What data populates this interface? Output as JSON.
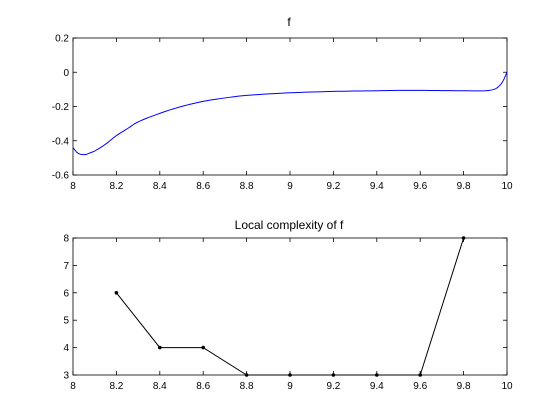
{
  "chart_data": [
    {
      "type": "line",
      "title": "f",
      "xlabel": "",
      "ylabel": "",
      "xlim": [
        8,
        10
      ],
      "ylim": [
        -0.6,
        0.2
      ],
      "xticks": [
        "8",
        "8.2",
        "8.4",
        "8.6",
        "8.8",
        "9",
        "9.2",
        "9.4",
        "9.6",
        "9.8",
        "10"
      ],
      "yticks": [
        "-0.6",
        "-0.4",
        "-0.2",
        "0",
        "0.2"
      ],
      "grid": false,
      "line_color": "#0000ff",
      "series": [
        {
          "x": [
            8.0,
            8.02,
            8.04,
            8.06,
            8.08,
            8.1,
            8.15,
            8.2,
            8.25,
            8.3,
            8.4,
            8.5,
            8.6,
            8.7,
            8.8,
            9.0,
            9.2,
            9.4,
            9.5,
            9.6,
            9.7,
            9.8,
            9.9,
            9.94,
            9.96,
            9.98,
            10.0
          ],
          "y": [
            -0.44,
            -0.47,
            -0.48,
            -0.48,
            -0.47,
            -0.46,
            -0.42,
            -0.37,
            -0.33,
            -0.29,
            -0.24,
            -0.2,
            -0.17,
            -0.15,
            -0.135,
            -0.12,
            -0.112,
            -0.108,
            -0.106,
            -0.106,
            -0.107,
            -0.108,
            -0.108,
            -0.1,
            -0.085,
            -0.055,
            0.0
          ]
        }
      ]
    },
    {
      "type": "line",
      "title": "Local complexity of f",
      "xlabel": "",
      "ylabel": "",
      "xlim": [
        8,
        10
      ],
      "ylim": [
        3,
        8
      ],
      "xticks": [
        "8",
        "8.2",
        "8.4",
        "8.6",
        "8.8",
        "9",
        "9.2",
        "9.4",
        "9.6",
        "9.8",
        "10"
      ],
      "yticks": [
        "3",
        "4",
        "5",
        "6",
        "7",
        "8"
      ],
      "grid": false,
      "line_color": "#000000",
      "markers": true,
      "series": [
        {
          "x": [
            8.2,
            8.4,
            8.6,
            8.8,
            9.0,
            9.2,
            9.4,
            9.6,
            9.8
          ],
          "y": [
            6,
            4,
            4,
            3,
            3,
            3,
            3,
            3,
            8
          ]
        }
      ]
    }
  ]
}
